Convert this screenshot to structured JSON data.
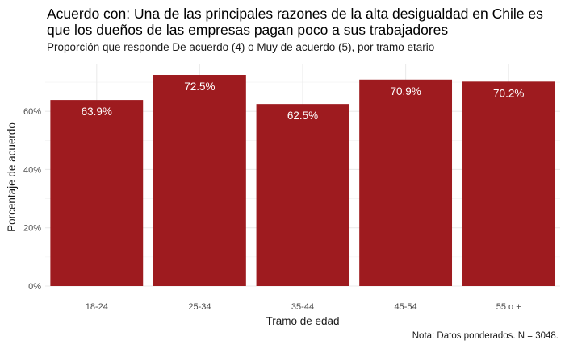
{
  "chart_data": {
    "type": "bar",
    "title": "Acuerdo con: Una de las principales razones de la alta desigualdad en Chile es que los dueños de las empresas pagan poco a sus trabajadores",
    "subtitle": "Proporción que responde De acuerdo (4) o Muy de acuerdo (5), por tramo etario",
    "caption": "Nota: Datos ponderados. N = 3048.",
    "xlabel": "Tramo de edad",
    "ylabel": "Porcentaje de acuerdo",
    "categories": [
      "18-24",
      "25-34",
      "35-44",
      "45-54",
      "55 o +"
    ],
    "values": [
      63.9,
      72.5,
      62.5,
      70.9,
      70.2
    ],
    "data_labels": [
      "63.9%",
      "72.5%",
      "62.5%",
      "70.9%",
      "70.2%"
    ],
    "y_ticks": [
      0,
      20,
      40,
      60
    ],
    "y_tick_labels": [
      "0%",
      "20%",
      "40%",
      "60%"
    ],
    "ylim": [
      0,
      76.1
    ],
    "bar_color": "#9e1b1f",
    "grid": true
  }
}
